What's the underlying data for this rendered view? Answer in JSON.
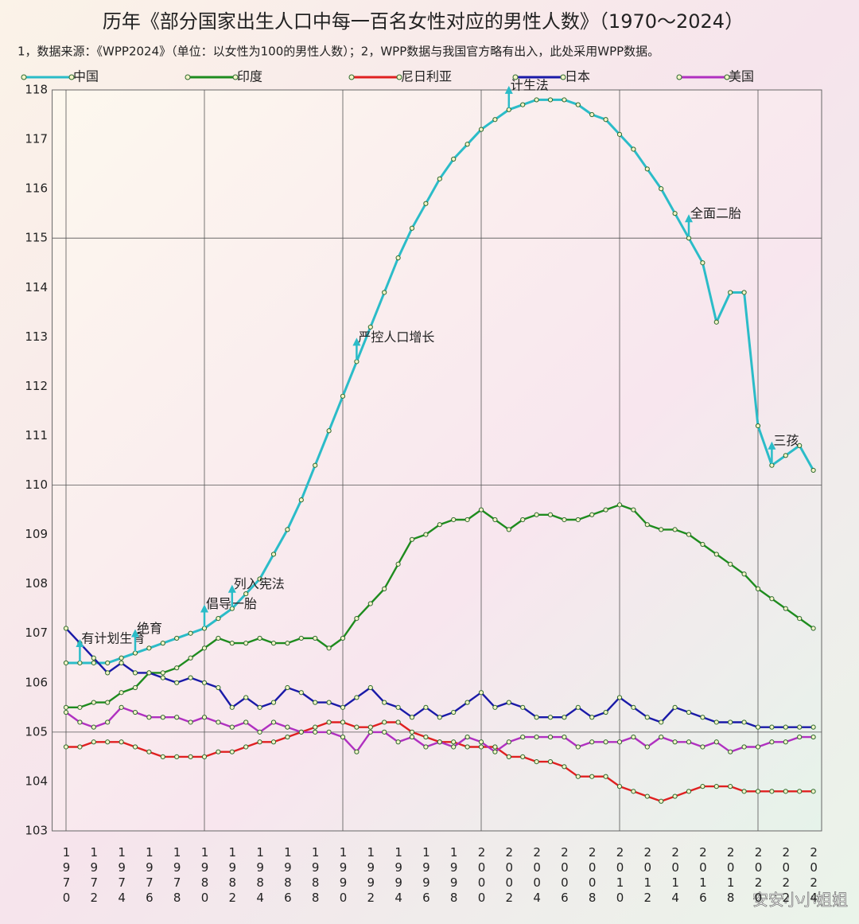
{
  "chart_data": {
    "type": "line",
    "title": "历年《部分国家出生人口中每一百名女性对应的男性人数》（1970～2024）",
    "subtitle": "1，数据来源：《WPP2024》（单位：以女性为100的男性人数）；2，WPP数据与我国官方略有出入，此处采用WPP数据。",
    "watermark": "安安小小姐姐",
    "x": [
      1970,
      1971,
      1972,
      1973,
      1974,
      1975,
      1976,
      1977,
      1978,
      1979,
      1980,
      1981,
      1982,
      1983,
      1984,
      1985,
      1986,
      1987,
      1988,
      1989,
      1990,
      1991,
      1992,
      1993,
      1994,
      1995,
      1996,
      1997,
      1998,
      1999,
      2000,
      2001,
      2002,
      2003,
      2004,
      2005,
      2006,
      2007,
      2008,
      2009,
      2010,
      2011,
      2012,
      2013,
      2014,
      2015,
      2016,
      2017,
      2018,
      2019,
      2020,
      2021,
      2022,
      2023,
      2024
    ],
    "series": [
      {
        "name": "中国",
        "color": "#2bbcc8",
        "values": [
          106.4,
          106.4,
          106.4,
          106.4,
          106.5,
          106.6,
          106.7,
          106.8,
          106.9,
          107.0,
          107.1,
          107.3,
          107.5,
          107.8,
          108.1,
          108.6,
          109.1,
          109.7,
          110.4,
          111.1,
          111.8,
          112.5,
          113.2,
          113.9,
          114.6,
          115.2,
          115.7,
          116.2,
          116.6,
          116.9,
          117.2,
          117.4,
          117.6,
          117.7,
          117.8,
          117.8,
          117.8,
          117.7,
          117.5,
          117.4,
          117.1,
          116.8,
          116.4,
          116.0,
          115.5,
          115.0,
          114.5,
          113.3,
          113.9,
          113.9,
          111.2,
          110.4,
          110.6,
          110.8,
          110.3
        ]
      },
      {
        "name": "印度",
        "color": "#1e8c1e",
        "values": [
          105.5,
          105.5,
          105.6,
          105.6,
          105.8,
          105.9,
          106.2,
          106.2,
          106.3,
          106.5,
          106.7,
          106.9,
          106.8,
          106.8,
          106.9,
          106.8,
          106.8,
          106.9,
          106.9,
          106.7,
          106.9,
          107.3,
          107.6,
          107.9,
          108.4,
          108.9,
          109.0,
          109.2,
          109.3,
          109.3,
          109.5,
          109.3,
          109.1,
          109.3,
          109.4,
          109.4,
          109.3,
          109.3,
          109.4,
          109.5,
          109.6,
          109.5,
          109.2,
          109.1,
          109.1,
          109.0,
          108.8,
          108.6,
          108.4,
          108.2,
          107.9,
          107.7,
          107.5,
          107.3,
          107.1
        ]
      },
      {
        "name": "尼日利亚",
        "color": "#e02020",
        "values": [
          104.7,
          104.7,
          104.8,
          104.8,
          104.8,
          104.7,
          104.6,
          104.5,
          104.5,
          104.5,
          104.5,
          104.6,
          104.6,
          104.7,
          104.8,
          104.8,
          104.9,
          105.0,
          105.1,
          105.2,
          105.2,
          105.1,
          105.1,
          105.2,
          105.2,
          105.0,
          104.9,
          104.8,
          104.8,
          104.7,
          104.7,
          104.7,
          104.5,
          104.5,
          104.4,
          104.4,
          104.3,
          104.1,
          104.1,
          104.1,
          103.9,
          103.8,
          103.7,
          103.6,
          103.7,
          103.8,
          103.9,
          103.9,
          103.9,
          103.8,
          103.8,
          103.8,
          103.8,
          103.8,
          103.8
        ]
      },
      {
        "name": "日本",
        "color": "#1a1aa8",
        "values": [
          107.1,
          106.8,
          106.5,
          106.2,
          106.4,
          106.2,
          106.2,
          106.1,
          106.0,
          106.1,
          106.0,
          105.9,
          105.5,
          105.7,
          105.5,
          105.6,
          105.9,
          105.8,
          105.6,
          105.6,
          105.5,
          105.7,
          105.9,
          105.6,
          105.5,
          105.3,
          105.5,
          105.3,
          105.4,
          105.6,
          105.8,
          105.5,
          105.6,
          105.5,
          105.3,
          105.3,
          105.3,
          105.5,
          105.3,
          105.4,
          105.7,
          105.5,
          105.3,
          105.2,
          105.5,
          105.4,
          105.3,
          105.2,
          105.2,
          105.2,
          105.1,
          105.1,
          105.1,
          105.1,
          105.1
        ]
      },
      {
        "name": "美国",
        "color": "#b030c0",
        "values": [
          105.4,
          105.2,
          105.1,
          105.2,
          105.5,
          105.4,
          105.3,
          105.3,
          105.3,
          105.2,
          105.3,
          105.2,
          105.1,
          105.2,
          105.0,
          105.2,
          105.1,
          105.0,
          105.0,
          105.0,
          104.9,
          104.6,
          105.0,
          105.0,
          104.8,
          104.9,
          104.7,
          104.8,
          104.7,
          104.9,
          104.8,
          104.6,
          104.8,
          104.9,
          104.9,
          104.9,
          104.9,
          104.7,
          104.8,
          104.8,
          104.8,
          104.9,
          104.7,
          104.9,
          104.8,
          104.8,
          104.7,
          104.8,
          104.6,
          104.7,
          104.7,
          104.8,
          104.8,
          104.9,
          104.9
        ]
      }
    ],
    "annotations": [
      {
        "text": "有计划生育",
        "x": 1971
      },
      {
        "text": "绝育",
        "x": 1975
      },
      {
        "text": "倡导一胎",
        "x": 1980
      },
      {
        "text": "列入宪法",
        "x": 1982
      },
      {
        "text": "严控人口增长",
        "x": 1991
      },
      {
        "text": "计生法",
        "x": 2002
      },
      {
        "text": "全面二胎",
        "x": 2015
      },
      {
        "text": "三孩",
        "x": 2021
      }
    ],
    "xlim": [
      1969,
      2025
    ],
    "xticks": [
      1970,
      1972,
      1974,
      1976,
      1978,
      1980,
      1982,
      1984,
      1986,
      1988,
      1990,
      1992,
      1994,
      1996,
      1998,
      2000,
      2002,
      2004,
      2006,
      2008,
      2010,
      2012,
      2014,
      2016,
      2018,
      2020,
      2022,
      2024
    ],
    "ylim": [
      103,
      118
    ],
    "yticks": [
      103,
      104,
      105,
      106,
      107,
      108,
      109,
      110,
      111,
      112,
      113,
      114,
      115,
      116,
      117,
      118
    ],
    "grid": true
  }
}
